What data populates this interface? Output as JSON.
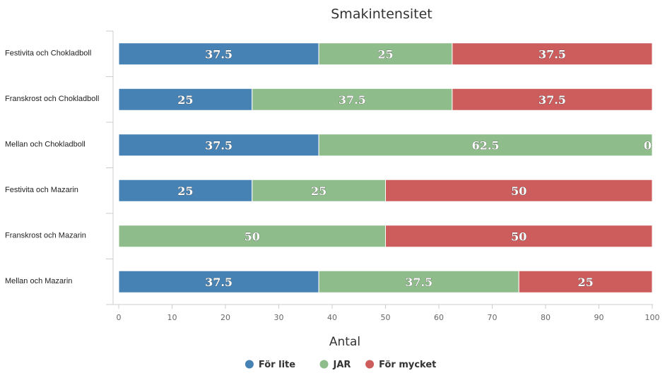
{
  "chart_data": {
    "type": "bar",
    "orientation": "horizontal",
    "stacked": true,
    "title": "Smakintensitet",
    "xlabel": "Antal",
    "ylabel": "",
    "xlim": [
      0,
      100
    ],
    "x_ticks": [
      "0",
      "10",
      "20",
      "30",
      "40",
      "50",
      "60",
      "70",
      "80",
      "90",
      "100"
    ],
    "grid": false,
    "legend_position": "bottom",
    "categories": [
      "Festivita och Chokladboll",
      "Franskrost och Chokladboll",
      "Mellan och Chokladboll",
      "Festivita och Mazarin",
      "Franskrost och Mazarin",
      "Mellan och Mazarin"
    ],
    "series": [
      {
        "name": "För lite",
        "color": "#4682b4",
        "values": [
          37.5,
          25,
          37.5,
          25,
          0,
          37.5
        ]
      },
      {
        "name": "JAR",
        "color": "#8fbc8b",
        "values": [
          25,
          37.5,
          62.5,
          25,
          50,
          37.5
        ]
      },
      {
        "name": "För mycket",
        "color": "#cd5c5c",
        "values": [
          37.5,
          37.5,
          0,
          50,
          50,
          25
        ]
      }
    ]
  }
}
